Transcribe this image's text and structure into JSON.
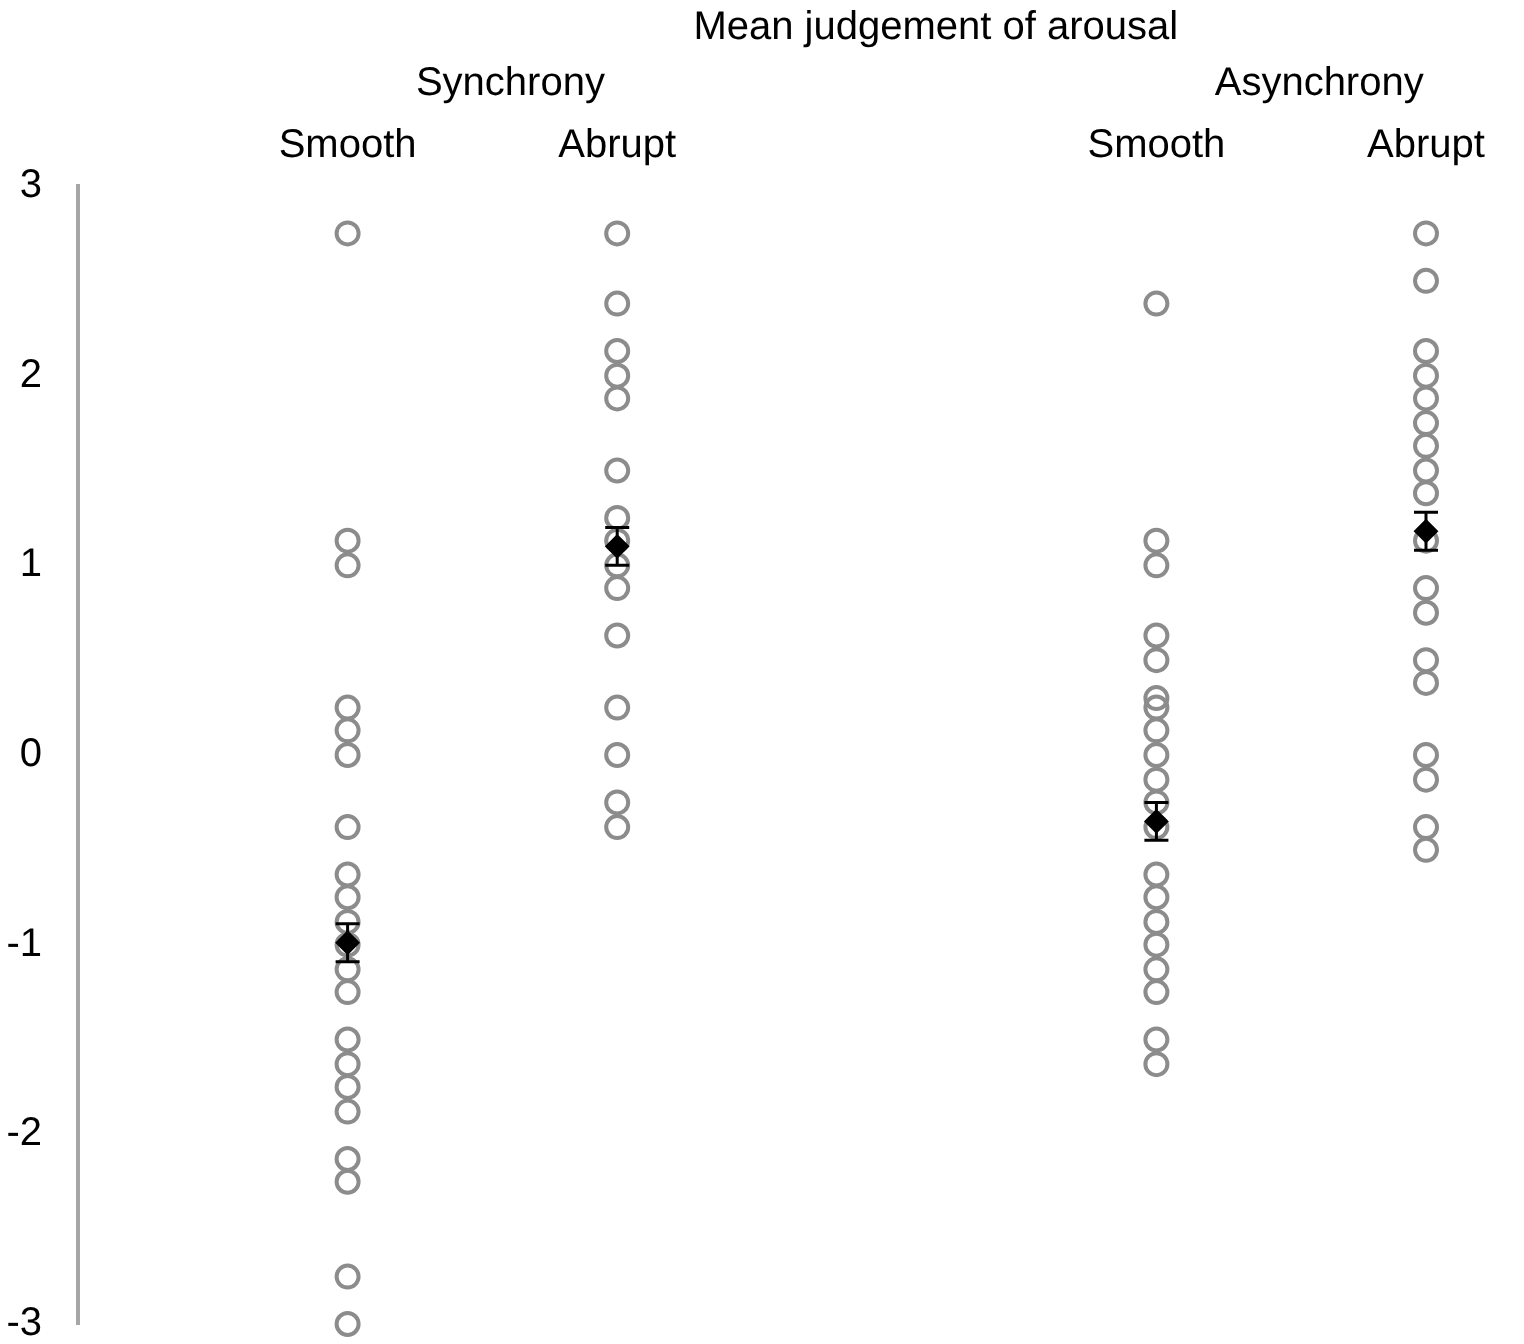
{
  "chart_data": {
    "type": "scatter",
    "title": "Mean judgement of arousal",
    "annotations": [
      "Synchrony",
      "Asynchrony"
    ],
    "categories": [
      null,
      "Smooth",
      "Abrupt",
      null,
      "Smooth",
      "Abrupt"
    ],
    "ylim": [
      -3,
      3
    ],
    "yticks": [
      -3,
      -2,
      -1,
      0,
      1,
      2,
      3
    ],
    "marker": "circle",
    "series": [
      {
        "color": "#8c8c8c",
        "values": [
          null,
          2.75,
          2.75,
          null,
          2.38,
          2.75
        ]
      },
      {
        "color": "#8c8c8c",
        "values": [
          null,
          1.13,
          2.38,
          null,
          1.13,
          2.5
        ]
      },
      {
        "color": "#8c8c8c",
        "values": [
          null,
          1,
          2.13,
          null,
          1,
          2.13
        ]
      },
      {
        "color": "#8c8c8c",
        "values": [
          null,
          0.25,
          2,
          null,
          0.63,
          2
        ]
      },
      {
        "color": "#8c8c8c",
        "values": [
          null,
          0.13,
          1.88,
          null,
          0.5,
          1.88
        ]
      },
      {
        "color": "#8c8c8c",
        "values": [
          null,
          0,
          1.5,
          null,
          0.3,
          1.75
        ]
      },
      {
        "color": "#8c8c8c",
        "values": [
          null,
          -0.38,
          1.25,
          null,
          0.25,
          1.63
        ]
      },
      {
        "color": "#8c8c8c",
        "values": [
          null,
          -0.63,
          1.13,
          null,
          0.13,
          1.5
        ]
      },
      {
        "color": "#8c8c8c",
        "values": [
          null,
          -0.75,
          1,
          null,
          0,
          1.38
        ]
      },
      {
        "color": "#8c8c8c",
        "values": [
          null,
          -0.88,
          0.88,
          null,
          -0.13,
          1.13
        ]
      },
      {
        "color": "#8c8c8c",
        "values": [
          null,
          -1,
          0.63,
          null,
          -0.25,
          0.88
        ]
      },
      {
        "color": "#8c8c8c",
        "values": [
          null,
          -1.13,
          0.25,
          null,
          -0.38,
          0.75
        ]
      },
      {
        "color": "#8c8c8c",
        "values": [
          null,
          -1.25,
          0,
          null,
          -0.63,
          0.5
        ]
      },
      {
        "color": "#8c8c8c",
        "values": [
          null,
          -1.5,
          -0.25,
          null,
          -0.75,
          0.38
        ]
      },
      {
        "color": "#8c8c8c",
        "values": [
          null,
          -1.63,
          -0.38,
          null,
          -0.88,
          0
        ]
      },
      {
        "color": "#8c8c8c",
        "values": [
          null,
          -1.75,
          null,
          null,
          -1,
          -0.13
        ]
      },
      {
        "color": "#8c8c8c",
        "values": [
          null,
          -1.88,
          null,
          null,
          -1.13,
          -0.38
        ]
      },
      {
        "color": "#8c8c8c",
        "values": [
          null,
          -2.13,
          null,
          null,
          -1.25,
          -0.5
        ]
      },
      {
        "color": "#8c8c8c",
        "values": [
          null,
          -2.25,
          null,
          null,
          -1.5,
          null
        ]
      },
      {
        "color": "#8c8c8c",
        "values": [
          null,
          -2.75,
          null,
          null,
          -1.63,
          null
        ]
      },
      {
        "color": "#8c8c8c",
        "values": [
          null,
          -3,
          null,
          null,
          null,
          null
        ]
      },
      {
        "color": "#000000",
        "marker": "diamond",
        "values": [
          null,
          -0.99,
          1.1,
          null,
          -0.35,
          1.18
        ],
        "errors": [
          null,
          0.1,
          0.1,
          null,
          0.1,
          0.1
        ]
      }
    ]
  }
}
